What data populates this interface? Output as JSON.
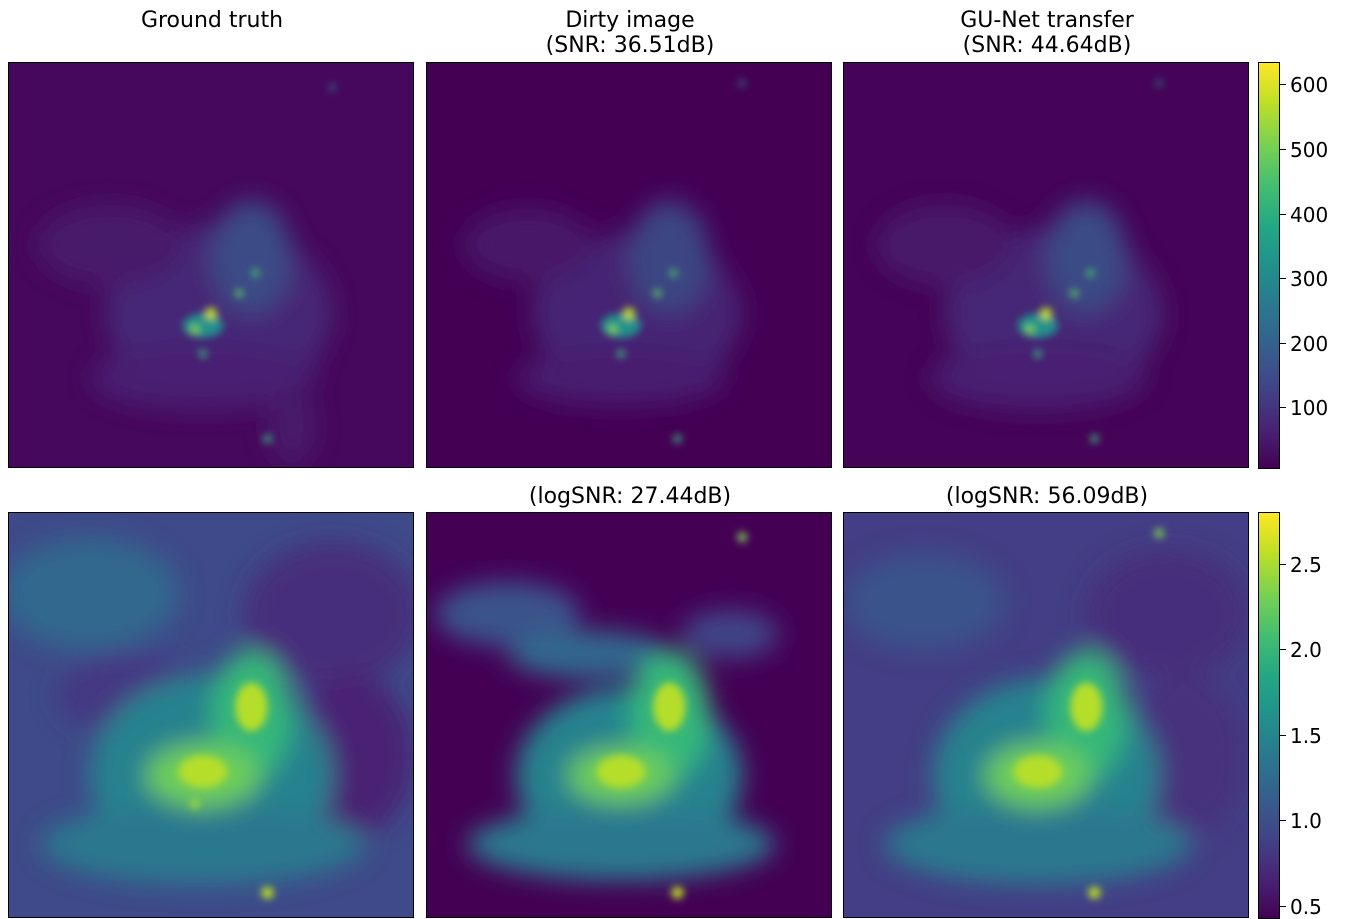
{
  "titles": {
    "ground_truth": "Ground truth",
    "dirty": "Dirty image\n(SNR: 36.51dB)",
    "gunet": "GU-Net transfer\n(SNR: 44.64dB)",
    "dirty_log": "(logSNR: 27.44dB)",
    "gunet_log": "(logSNR: 56.09dB)"
  },
  "colorbar_top": {
    "ticks": [
      "600",
      "500",
      "400",
      "300",
      "200",
      "100"
    ],
    "colormap": "viridis"
  },
  "colorbar_bottom": {
    "ticks": [
      "2.5",
      "2.0",
      "1.5",
      "1.0",
      "0.5"
    ],
    "colormap": "viridis"
  },
  "colors": {
    "viridis_low": "#440154",
    "viridis_mid": "#21918c",
    "viridis_high": "#fde725"
  }
}
